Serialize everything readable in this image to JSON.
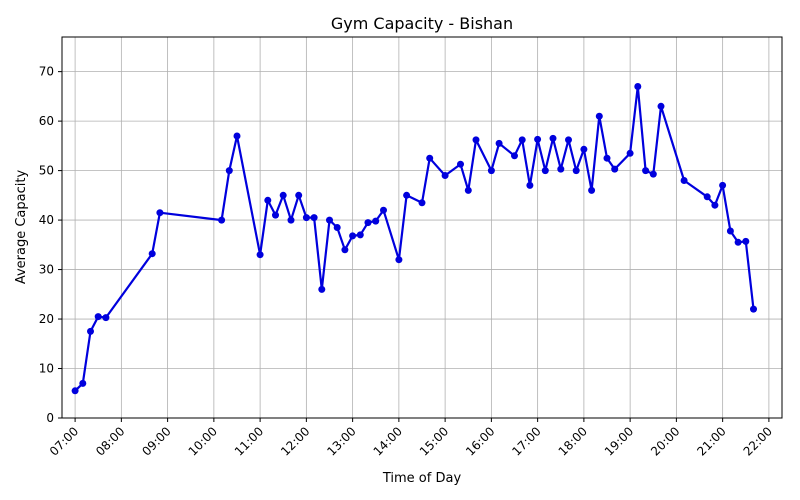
{
  "chart_data": {
    "type": "line",
    "title": "Gym Capacity - Bishan",
    "xlabel": "Time of Day",
    "ylabel": "Average Capacity",
    "grid": true,
    "xlim": [
      "06:43",
      "22:17"
    ],
    "ylim": [
      0,
      77
    ],
    "x_ticks": [
      "07:00",
      "08:00",
      "09:00",
      "10:00",
      "11:00",
      "12:00",
      "13:00",
      "14:00",
      "15:00",
      "16:00",
      "17:00",
      "18:00",
      "19:00",
      "20:00",
      "21:00",
      "22:00"
    ],
    "y_ticks": [
      0,
      10,
      20,
      30,
      40,
      50,
      60,
      70
    ],
    "series": [
      {
        "color": "#0000dd",
        "x": [
          "07:00",
          "07:10",
          "07:20",
          "07:30",
          "07:40",
          "08:40",
          "08:50",
          "10:10",
          "10:20",
          "10:30",
          "11:00",
          "11:10",
          "11:20",
          "11:30",
          "11:40",
          "11:50",
          "12:00",
          "12:10",
          "12:20",
          "12:30",
          "12:40",
          "12:50",
          "13:00",
          "13:10",
          "13:20",
          "13:30",
          "13:40",
          "14:00",
          "14:10",
          "14:30",
          "14:40",
          "15:00",
          "15:20",
          "15:30",
          "15:40",
          "16:00",
          "16:10",
          "16:30",
          "16:40",
          "16:50",
          "17:00",
          "17:10",
          "17:20",
          "17:30",
          "17:40",
          "17:50",
          "18:00",
          "18:10",
          "18:20",
          "18:30",
          "18:40",
          "19:00",
          "19:10",
          "19:20",
          "19:30",
          "19:40",
          "20:10",
          "20:40",
          "20:50",
          "21:00",
          "21:10",
          "21:20",
          "21:30",
          "21:40"
        ],
        "y": [
          5.5,
          7,
          17.5,
          20.5,
          20.3,
          33.2,
          41.5,
          40,
          50,
          57,
          33,
          44,
          41,
          45,
          40,
          45,
          40.5,
          40.5,
          26,
          40,
          38.5,
          34,
          36.8,
          37,
          39.5,
          39.8,
          42,
          32,
          45,
          43.5,
          52.5,
          49,
          51.3,
          46,
          56.2,
          50,
          55.5,
          53,
          56.2,
          47,
          56.3,
          50,
          56.5,
          50.3,
          56.2,
          50,
          54.3,
          46,
          61,
          52.5,
          50.3,
          53.5,
          67,
          50,
          49.3,
          63,
          48,
          44.7,
          43,
          47,
          37.8,
          35.5,
          35.7,
          22
        ]
      }
    ]
  }
}
